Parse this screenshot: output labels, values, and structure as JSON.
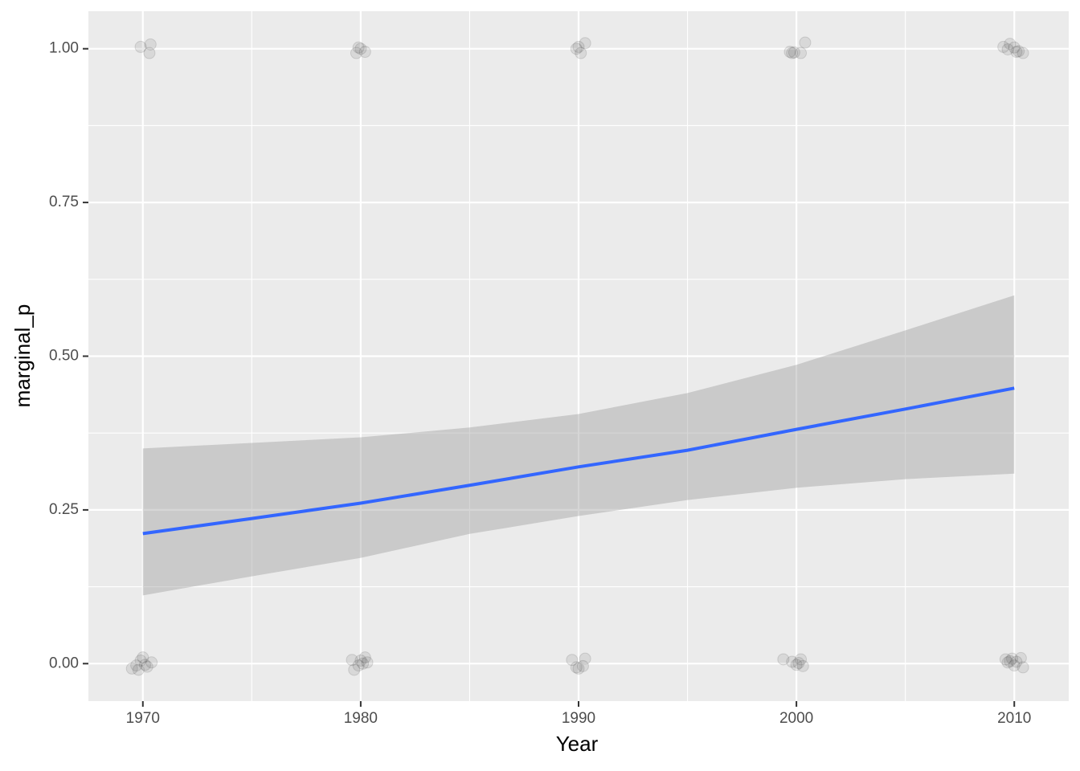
{
  "chart_data": {
    "type": "scatter_smooth",
    "x_label": "Year",
    "y_label": "marginal_p",
    "xlim": [
      1967.5,
      2012.5
    ],
    "xticks": [
      1970,
      1980,
      1990,
      2000,
      2010
    ],
    "xminorticks": [
      1975,
      1985,
      1995,
      2005
    ],
    "ylim": [
      -0.061,
      1.061
    ],
    "yticks": [
      {
        "value": 0,
        "label": "0.00"
      },
      {
        "value": 0.25,
        "label": "0.25"
      },
      {
        "value": 0.5,
        "label": "0.50"
      },
      {
        "value": 0.75,
        "label": "0.75"
      },
      {
        "value": 1,
        "label": "1.00"
      }
    ],
    "yminorticks": [
      0.125,
      0.375,
      0.625,
      0.875
    ],
    "grid": true,
    "points": {
      "color": "#333333",
      "x": [
        1969.9,
        1970.3,
        1970.35,
        1969.5,
        1969.7,
        1969.9,
        1970.0,
        1970.2,
        1970.4,
        1969.8,
        1970.1,
        1979.8,
        1979.9,
        1980.0,
        1980.2,
        1979.6,
        1979.7,
        1980.0,
        1980.1,
        1980.2,
        1980.3,
        1979.9,
        1989.9,
        1990.1,
        1990.3,
        1990.0,
        1989.7,
        1989.9,
        1990.0,
        1990.3,
        1990.2,
        1999.7,
        1999.8,
        2000.2,
        2000.4,
        1999.9,
        1999.4,
        1999.8,
        2000.0,
        2000.2,
        2000.3,
        2000.1,
        2009.5,
        2009.7,
        2009.8,
        2010.0,
        2010.2,
        2010.4,
        2010.1,
        2009.6,
        2009.8,
        2009.9,
        2010.1,
        2010.3,
        2010.4,
        2010.0,
        2009.7
      ],
      "y": [
        1.003,
        0.993,
        1.007,
        -0.008,
        -0.003,
        0.005,
        0.01,
        -0.005,
        0.002,
        -0.01,
        -0.002,
        0.993,
        1.002,
        1.0,
        0.995,
        0.006,
        -0.01,
        0.005,
        0.0,
        0.01,
        0.002,
        -0.003,
        1.0,
        0.993,
        1.009,
        1.003,
        0.006,
        -0.006,
        -0.008,
        0.008,
        -0.004,
        0.995,
        0.993,
        0.993,
        1.01,
        0.994,
        0.007,
        0.003,
        -0.002,
        0.007,
        -0.004,
        0.001,
        1.003,
        0.999,
        1.008,
        1.002,
        0.996,
        0.993,
        0.995,
        0.007,
        0.004,
        0.008,
        0.003,
        0.009,
        -0.006,
        -0.003,
        0.002
      ]
    },
    "smooth": {
      "color": "#3366ff",
      "band_color": "#999999",
      "x": [
        1970,
        1975,
        1980,
        1985,
        1990,
        1995,
        2000,
        2005,
        2010
      ],
      "y": [
        0.2115,
        0.236,
        0.261,
        0.29,
        0.32,
        0.347,
        0.381,
        0.414,
        0.448
      ],
      "ymin": [
        0.111,
        0.142,
        0.172,
        0.211,
        0.24,
        0.266,
        0.286,
        0.3,
        0.309
      ],
      "ymax": [
        0.35,
        0.359,
        0.368,
        0.384,
        0.406,
        0.44,
        0.486,
        0.542,
        0.599
      ]
    }
  }
}
